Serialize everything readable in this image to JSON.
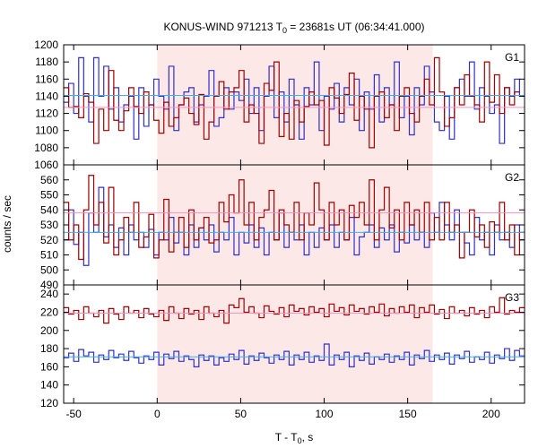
{
  "chart_data": {
    "type": "line",
    "title": {
      "main": "KONUS-WIND 971213 T",
      "sub": "0",
      "rest": " = 23681s UT (06:34:41.000)"
    },
    "xlabel": {
      "main": "T - T",
      "sub": "0",
      "rest": ", s"
    },
    "ylabel": "counts / sec",
    "xlim": [
      -56,
      220
    ],
    "x_ticks": [
      -50,
      0,
      50,
      100,
      150,
      200
    ],
    "bin_width": 3.0,
    "bin_start": -56,
    "highlight_interval": [
      0,
      165
    ],
    "colors": {
      "series_a": "#a00000",
      "series_b": "#3030c8",
      "fit_a": "#ff8fc0",
      "fit_b": "#40b0e8",
      "highlight": "#fde8e8"
    },
    "panels": [
      {
        "label": "G1",
        "ylim": [
          1060,
          1200
        ],
        "y_ticks": [
          1060,
          1080,
          1100,
          1120,
          1140,
          1160,
          1180,
          1200
        ],
        "fit_a": 1127,
        "fit_b": 1141,
        "series_a": [
          1150,
          1127,
          1128,
          1115,
          1143,
          1133,
          1085,
          1125,
          1100,
          1170,
          1112,
          1100,
          1123,
          1150,
          1128,
          1120,
          1145,
          1130,
          1112,
          1097,
          1133,
          1105,
          1115,
          1130,
          1138,
          1120,
          1107,
          1142,
          1090,
          1110,
          1140,
          1157,
          1125,
          1145,
          1150,
          1170,
          1110,
          1130,
          1120,
          1085,
          1155,
          1147,
          1180,
          1093,
          1120,
          1090,
          1135,
          1110,
          1128,
          1145,
          1130,
          1135,
          1083,
          1150,
          1138,
          1120,
          1142,
          1167,
          1112,
          1140,
          1125,
          1080,
          1140,
          1145,
          1115,
          1130,
          1100,
          1140,
          1150,
          1120,
          1110,
          1140,
          1160,
          1130,
          1185,
          1145,
          1105,
          1115,
          1150,
          1130,
          1165,
          1140,
          1130,
          1110,
          1180,
          1133,
          1165,
          1120,
          1150,
          1130,
          1145
        ],
        "series_b": [
          1133,
          1155,
          1120,
          1185,
          1140,
          1110,
          1185,
          1140,
          1175,
          1125,
          1150,
          1110,
          1130,
          1140,
          1090,
          1150,
          1105,
          1130,
          1160,
          1140,
          1125,
          1175,
          1100,
          1130,
          1145,
          1150,
          1110,
          1130,
          1140,
          1170,
          1105,
          1115,
          1150,
          1125,
          1145,
          1135,
          1160,
          1120,
          1150,
          1100,
          1140,
          1175,
          1115,
          1145,
          1110,
          1160,
          1130,
          1090,
          1150,
          1130,
          1180,
          1100,
          1140,
          1125,
          1155,
          1110,
          1150,
          1130,
          1160,
          1100,
          1145,
          1125,
          1165,
          1110,
          1150,
          1130,
          1180,
          1115,
          1140,
          1095,
          1150,
          1130,
          1175,
          1145,
          1110,
          1100,
          1140,
          1090,
          1150,
          1160,
          1140,
          1180,
          1125,
          1150,
          1140,
          1120,
          1130,
          1085,
          1150,
          1140,
          1160,
          1140
        ]
      },
      {
        "label": "G2",
        "ylim": [
          490,
          570
        ],
        "y_ticks": [
          490,
          500,
          510,
          520,
          530,
          540,
          550,
          560
        ],
        "fit_a": 538,
        "fit_b": 525,
        "series_a": [
          545,
          520,
          530,
          507,
          540,
          563,
          530,
          545,
          518,
          555,
          510,
          520,
          535,
          525,
          545,
          515,
          522,
          537,
          508,
          520,
          547,
          512,
          525,
          535,
          515,
          540,
          520,
          528,
          535,
          518,
          520,
          545,
          532,
          550,
          538,
          560,
          530,
          545,
          520,
          535,
          540,
          553,
          520,
          540,
          530,
          525,
          545,
          520,
          538,
          530,
          558,
          540,
          520,
          545,
          530,
          540,
          520,
          543,
          535,
          545,
          530,
          560,
          520,
          540,
          555,
          528,
          540,
          520,
          545,
          530,
          540,
          525,
          545,
          520,
          535,
          520,
          545,
          525,
          530,
          508,
          525,
          540,
          522,
          530,
          515,
          532,
          525,
          545,
          520,
          530,
          510,
          525
        ],
        "series_b": [
          520,
          540,
          517,
          525,
          503,
          538,
          525,
          555,
          522,
          530,
          515,
          528,
          510,
          530,
          520,
          525,
          515,
          527,
          510,
          525,
          520,
          535,
          518,
          525,
          510,
          530,
          515,
          528,
          520,
          530,
          512,
          525,
          520,
          535,
          510,
          525,
          518,
          530,
          515,
          528,
          510,
          525,
          520,
          538,
          515,
          525,
          520,
          530,
          510,
          525,
          515,
          528,
          520,
          530,
          515,
          525,
          520,
          535,
          510,
          522,
          525,
          530,
          515,
          528,
          520,
          530,
          512,
          525,
          518,
          530,
          520,
          525,
          515,
          538,
          525,
          545,
          530,
          520,
          540,
          525,
          518,
          510,
          535,
          520,
          525,
          510,
          530,
          520,
          525,
          515,
          530,
          520
        ]
      },
      {
        "label": "G3",
        "ylim": [
          120,
          250
        ],
        "y_ticks": [
          120,
          140,
          160,
          180,
          200,
          220,
          240
        ],
        "fit_a": 219,
        "fit_b": 171,
        "series_a": [
          225,
          218,
          222,
          212,
          226,
          219,
          215,
          222,
          208,
          224,
          218,
          212,
          226,
          219,
          222,
          214,
          224,
          218,
          215,
          222,
          211,
          226,
          219,
          213,
          224,
          218,
          222,
          212,
          226,
          219,
          215,
          222,
          208,
          228,
          225,
          235,
          220,
          226,
          219,
          214,
          227,
          221,
          218,
          225,
          215,
          228,
          221,
          224,
          217,
          226,
          220,
          224,
          215,
          229,
          221,
          225,
          217,
          228,
          221,
          224,
          218,
          226,
          220,
          229,
          216,
          224,
          219,
          226,
          220,
          228,
          214,
          225,
          220,
          228,
          218,
          223,
          213,
          226,
          219,
          222,
          216,
          225,
          218,
          222,
          214,
          226,
          220,
          236,
          218,
          222,
          220,
          225
        ],
        "series_b": [
          170,
          175,
          166,
          179,
          172,
          176,
          165,
          173,
          168,
          178,
          170,
          174,
          167,
          177,
          170,
          164,
          172,
          168,
          176,
          162,
          174,
          169,
          177,
          166,
          172,
          168,
          160,
          173,
          167,
          172,
          162,
          170,
          166,
          174,
          168,
          178,
          163,
          172,
          167,
          175,
          170,
          164,
          173,
          168,
          177,
          162,
          173,
          168,
          176,
          165,
          172,
          167,
          185,
          162,
          173,
          168,
          176,
          160,
          172,
          167,
          175,
          163,
          171,
          168,
          174,
          165,
          172,
          168,
          176,
          162,
          173,
          169,
          178,
          166,
          173,
          168,
          175,
          163,
          173,
          169,
          177,
          165,
          171,
          168,
          176,
          164,
          173,
          169,
          180,
          167,
          178,
          172
        ]
      }
    ]
  }
}
